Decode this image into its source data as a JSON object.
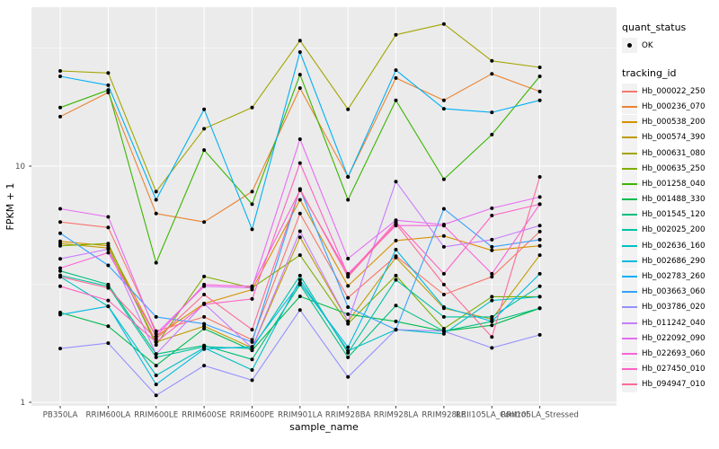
{
  "figure": {
    "background": "#FFFFFF",
    "panel_background": "#EBEBEB",
    "grid_color": "#FFFFFF",
    "axis_text_color": "#4D4D4D",
    "tick_color": "#333333",
    "text_color": "#000000"
  },
  "axes": {
    "y_title": "FPKM + 1",
    "x_title": "sample_name"
  },
  "legend": {
    "quant_status_title": "quant_status",
    "quant_status_items": [
      {
        "label": "OK",
        "shape": "point",
        "color": "#000000"
      }
    ],
    "tracking_id_title": "tracking_id",
    "key_background": "#F2F2F2"
  },
  "chart_data": {
    "type": "line",
    "title": "",
    "xlabel": "sample_name",
    "ylabel": "FPKM + 1",
    "legend_position": "right",
    "grid": true,
    "point_marker": {
      "label": "OK",
      "color": "#000000",
      "radius": 2
    },
    "x_categories": [
      "PB350LA",
      "RRIM600LA",
      "RRIM600LE",
      "RRIM600SE",
      "RRIM600PE",
      "RRIM901LA",
      "RRIM928BA",
      "RRIM928LA",
      "RRIM928LE",
      "RRII105LA_Control",
      "RRII105LA_Stressed"
    ],
    "y_axis": {
      "scale": "log10",
      "ticks": [
        10,
        1
      ],
      "minor_ticks": [
        31.6228,
        3.1623
      ],
      "range_approx": [
        0.97,
        47
      ]
    },
    "series": [
      {
        "name": "Hb_000022_250",
        "color": "#F8766D",
        "values": [
          5.8,
          5.5,
          2.0,
          2.3,
          1.84,
          6.3,
          2.77,
          4.16,
          2.86,
          3.4,
          5.28
        ]
      },
      {
        "name": "Hb_000236_070",
        "color": "#EA8331",
        "values": [
          16.2,
          20.5,
          6.3,
          5.8,
          7.8,
          21.4,
          9.0,
          23.6,
          19.0,
          24.6,
          20.7
        ]
      },
      {
        "name": "Hb_000538_200",
        "color": "#D89000",
        "values": [
          4.8,
          4.6,
          1.9,
          2.62,
          3.0,
          7.2,
          3.11,
          4.84,
          5.06,
          4.4,
          4.6
        ]
      },
      {
        "name": "Hb_000574_390",
        "color": "#C09B00",
        "values": [
          4.7,
          4.5,
          1.8,
          2.1,
          1.7,
          5.0,
          2.2,
          4.1,
          2.5,
          2.25,
          4.2
        ]
      },
      {
        "name": "Hb_000631_080",
        "color": "#A3A500",
        "values": [
          25.3,
          24.8,
          7.8,
          14.4,
          17.7,
          34.0,
          17.4,
          36.0,
          40.0,
          27.9,
          26.2
        ]
      },
      {
        "name": "Hb_000635_250",
        "color": "#7CAE00",
        "values": [
          4.6,
          4.7,
          1.75,
          3.41,
          3.05,
          4.2,
          2.15,
          3.44,
          2.05,
          2.8,
          2.8
        ]
      },
      {
        "name": "Hb_001258_040",
        "color": "#39B600",
        "values": [
          17.7,
          21.0,
          3.9,
          11.7,
          6.9,
          24.4,
          7.2,
          19.0,
          8.8,
          13.6,
          24.0
        ]
      },
      {
        "name": "Hb_001488_330",
        "color": "#00BB4E",
        "values": [
          2.4,
          2.1,
          1.43,
          2.05,
          1.66,
          2.81,
          2.36,
          2.2,
          2.0,
          2.12,
          2.5
        ]
      },
      {
        "name": "Hb_001545_120",
        "color": "#00BF7D",
        "values": [
          3.6,
          3.15,
          1.6,
          1.74,
          1.52,
          3.15,
          1.55,
          2.57,
          2.0,
          2.2,
          2.5
        ]
      },
      {
        "name": "Hb_002025_200",
        "color": "#00C1A3",
        "values": [
          3.45,
          3.1,
          1.55,
          1.72,
          1.69,
          3.44,
          1.62,
          3.3,
          2.3,
          2.3,
          3.1
        ]
      },
      {
        "name": "Hb_002636_160",
        "color": "#00BFC4",
        "values": [
          3.4,
          2.55,
          1.3,
          1.7,
          1.37,
          3.3,
          1.65,
          2.03,
          1.95,
          2.7,
          2.8
        ]
      },
      {
        "name": "Hb_002686_290",
        "color": "#00BAE0",
        "values": [
          2.35,
          2.55,
          1.19,
          1.68,
          1.72,
          3.2,
          1.71,
          4.43,
          2.53,
          2.2,
          3.5
        ]
      },
      {
        "name": "Hb_002783_260",
        "color": "#00B0F6",
        "values": [
          24.0,
          22.0,
          7.2,
          17.4,
          5.4,
          30.4,
          9.0,
          25.5,
          17.5,
          16.9,
          19.0
        ]
      },
      {
        "name": "Hb_003663_060",
        "color": "#35A2FF",
        "values": [
          5.2,
          3.8,
          2.3,
          2.15,
          1.8,
          8.0,
          2.53,
          2.03,
          6.6,
          4.55,
          4.88
        ]
      },
      {
        "name": "Hb_003786_020",
        "color": "#9590FF",
        "values": [
          1.69,
          1.78,
          1.07,
          1.43,
          1.24,
          2.46,
          1.28,
          2.03,
          2.0,
          1.7,
          1.93
        ]
      },
      {
        "name": "Hb_011242_040",
        "color": "#C77CFF",
        "values": [
          4.05,
          4.45,
          1.6,
          2.62,
          1.7,
          5.3,
          2.2,
          8.6,
          4.55,
          4.88,
          5.6
        ]
      },
      {
        "name": "Hb_022092_090",
        "color": "#E76BF3",
        "values": [
          6.6,
          6.1,
          1.95,
          3.1,
          3.05,
          13.0,
          4.06,
          5.9,
          5.66,
          6.63,
          7.4
        ]
      },
      {
        "name": "Hb_022693_060",
        "color": "#FA62DB",
        "values": [
          3.7,
          4.3,
          1.9,
          3.15,
          3.1,
          7.9,
          3.5,
          5.6,
          5.6,
          3.5,
          6.9
        ]
      },
      {
        "name": "Hb_027450_010",
        "color": "#FF61C3",
        "values": [
          3.1,
          2.7,
          1.8,
          2.6,
          2.74,
          10.3,
          3.45,
          5.8,
          3.5,
          6.18,
          6.9
        ]
      },
      {
        "name": "Hb_094947_010",
        "color": "#FF6A98",
        "values": [
          3.4,
          3.05,
          1.85,
          2.86,
          2.03,
          8.0,
          3.4,
          5.7,
          3.15,
          1.89,
          9.0
        ]
      }
    ]
  }
}
